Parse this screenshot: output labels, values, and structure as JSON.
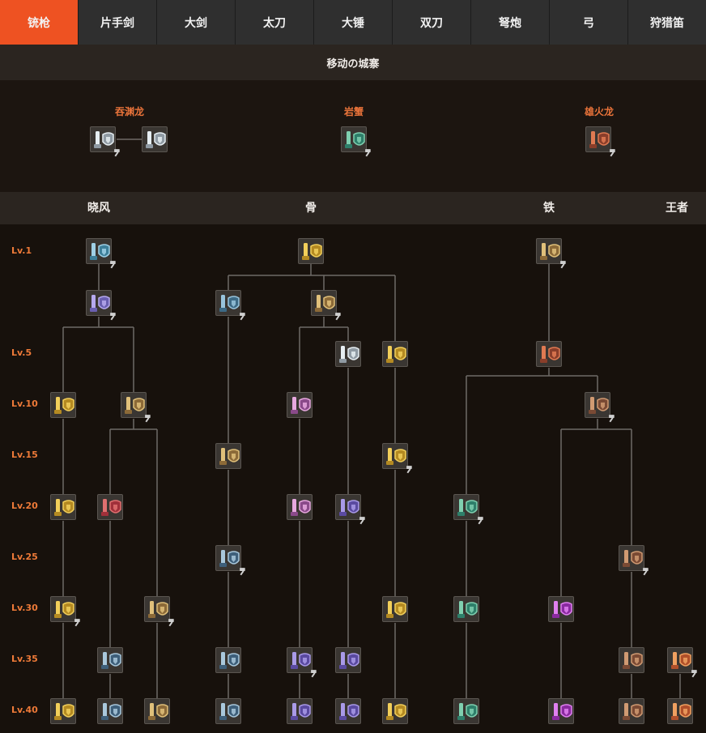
{
  "tabs": [
    {
      "label": "铳枪",
      "active": true
    },
    {
      "label": "片手剑",
      "active": false
    },
    {
      "label": "大剑",
      "active": false
    },
    {
      "label": "太刀",
      "active": false
    },
    {
      "label": "大锤",
      "active": false
    },
    {
      "label": "双刀",
      "active": false
    },
    {
      "label": "弩炮",
      "active": false
    },
    {
      "label": "弓",
      "active": false
    },
    {
      "label": "狩猎笛",
      "active": false
    }
  ],
  "region_title": "移动の城寨",
  "special_monsters": [
    {
      "name": "吞渊龙"
    },
    {
      "name": "岩蟹"
    },
    {
      "name": "雄火龙"
    }
  ],
  "tree_titles": [
    "晓风",
    "骨",
    "铁",
    "王者"
  ],
  "levels": [
    "Lv.1",
    "Lv.5",
    "Lv.10",
    "Lv.15",
    "Lv.20",
    "Lv.25",
    "Lv.30",
    "Lv.35",
    "Lv.40"
  ],
  "colors": {
    "accent": "#ee5222",
    "level_text": "#ee7a38",
    "monster_text": "#e9733a",
    "line": "#6e6a66"
  },
  "icons": {
    "weapon": "gunlance-icon",
    "craft": "hammer-craft-icon"
  }
}
